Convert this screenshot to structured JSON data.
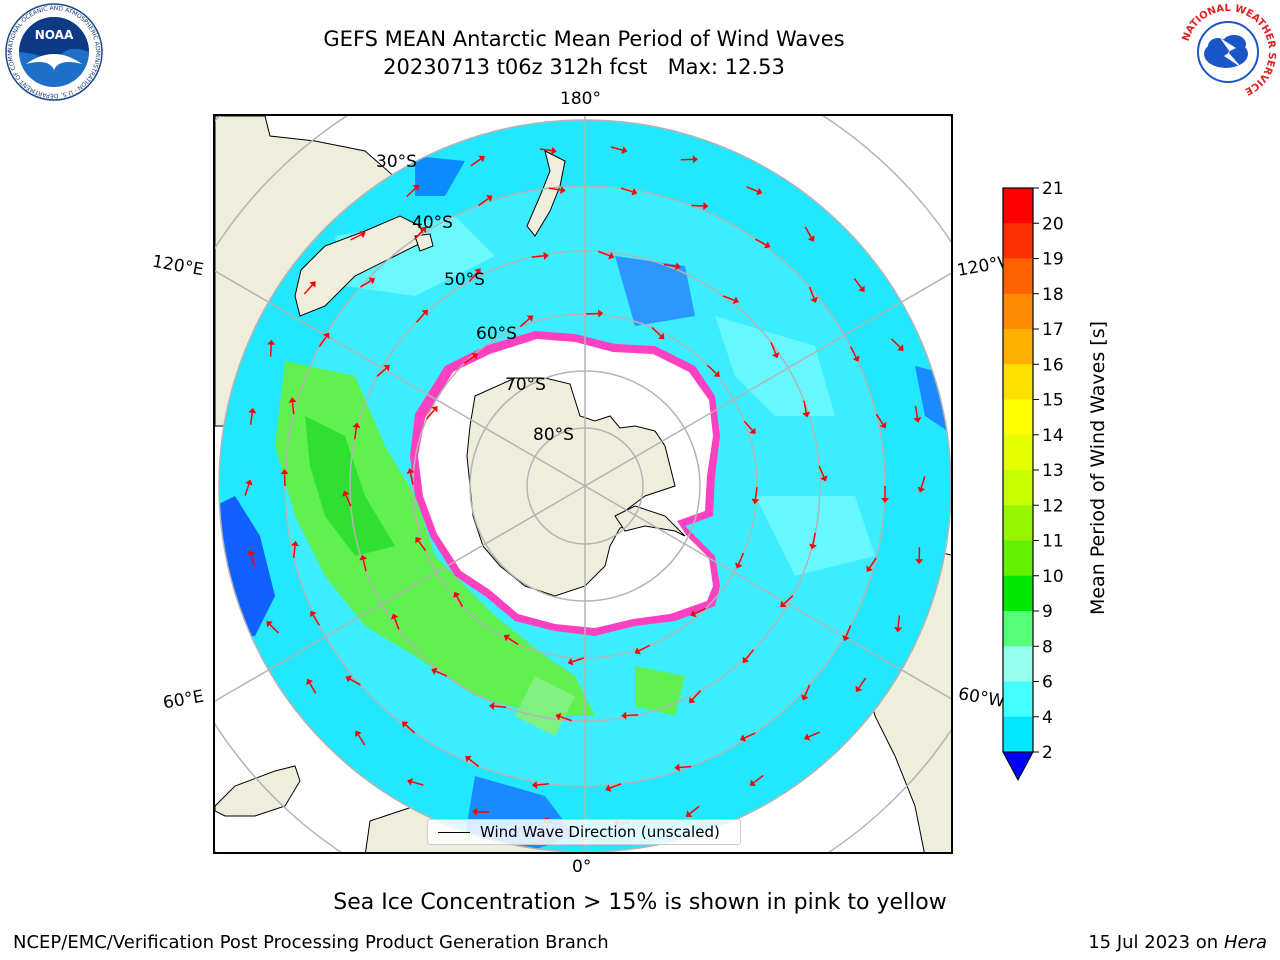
{
  "header": {
    "title": "GEFS MEAN Antarctic Mean Period of Wind Waves",
    "subtitle": "20230713 t06z 312h fcst   Max: 12.53"
  },
  "map": {
    "projection": "south-polar-stereographic",
    "latitude_labels": [
      "30°S",
      "40°S",
      "50°S",
      "60°S",
      "70°S",
      "80°S"
    ],
    "longitude_labels": {
      "top": "180°",
      "bottom": "0°",
      "upper_left": "120°E",
      "upper_right": "120°W",
      "lower_left": "60°E",
      "lower_right": "60°W"
    },
    "legend": "Wind Wave Direction (unscaled)",
    "colors": {
      "land": "#efeedc",
      "ice_fill": "#ffffff",
      "ice_edge_pink": "#ff40c0",
      "ice_edge_yellow": "#ffd27a",
      "arrow": "#ff0000",
      "grid": "#b4b4b4"
    }
  },
  "colorbar": {
    "label": "Mean Period of Wind Waves [s]",
    "ticks": [
      "21",
      "20",
      "19",
      "18",
      "17",
      "16",
      "15",
      "14",
      "13",
      "12",
      "11",
      "10",
      "9",
      "8",
      "6",
      "4",
      "2"
    ],
    "colors": [
      "#ff0000",
      "#ff3000",
      "#ff6000",
      "#ff8c00",
      "#ffb000",
      "#ffe100",
      "#ffff00",
      "#e6ff00",
      "#c8ff00",
      "#96f500",
      "#64f000",
      "#00e600",
      "#55ff77",
      "#99ffee",
      "#44ffff",
      "#00e6ff",
      "#0080ff"
    ],
    "under_color": "#0000ff"
  },
  "note": "Sea Ice Concentration > 15% is shown in pink to yellow",
  "footer": {
    "left": "NCEP/EMC/Verification Post Processing Product Generation Branch",
    "right_date": "15 Jul 2023 on ",
    "right_machine": "Hera"
  },
  "logos": {
    "left": "NOAA",
    "left_ring": "NATIONAL OCEANIC AND ATMOSPHERIC ADMINISTRATION · U.S. DEPARTMENT OF COMMERCE",
    "right_ring": "NATIONAL WEATHER SERVICE"
  }
}
